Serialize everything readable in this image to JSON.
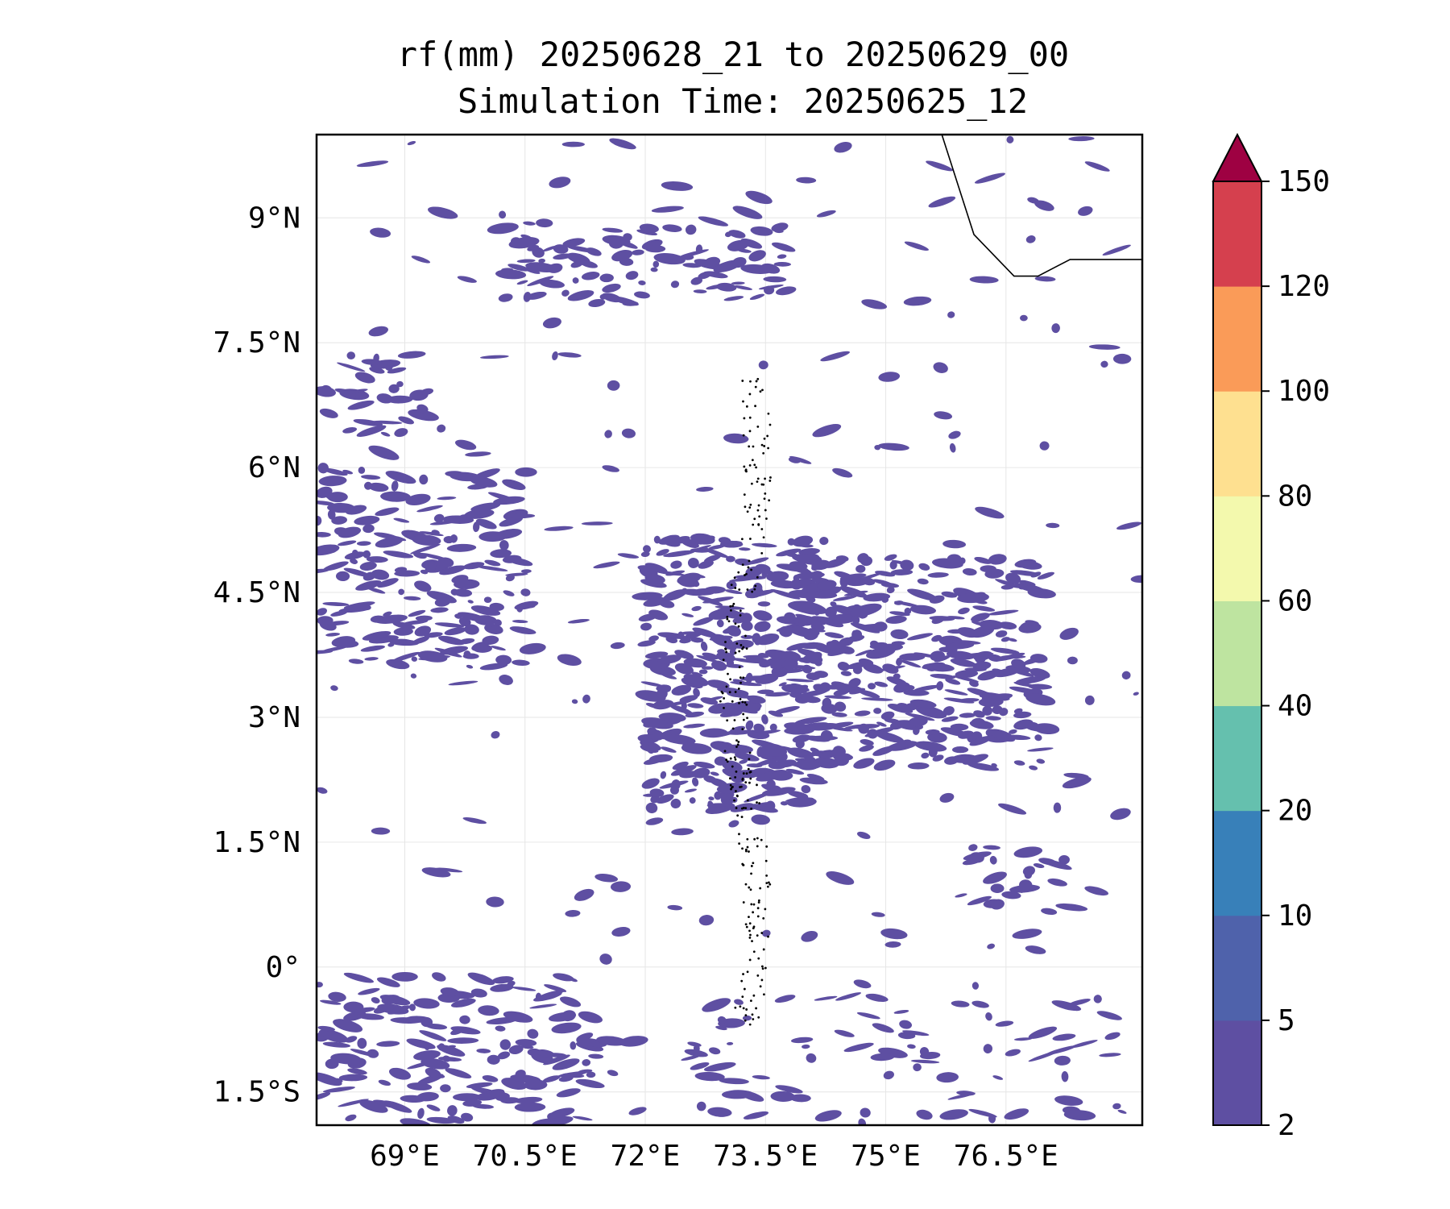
{
  "title": {
    "line1": "rf(mm) 20250628_21 to 20250629_00",
    "line2": "Simulation Time: 20250625_12"
  },
  "map": {
    "lon_range": [
      67.9,
      78.2
    ],
    "lat_range": [
      -1.9,
      10.0
    ],
    "x_ticks": [
      {
        "value": 69.0,
        "label": "69°E"
      },
      {
        "value": 70.5,
        "label": "70.5°E"
      },
      {
        "value": 72.0,
        "label": "72°E"
      },
      {
        "value": 73.5,
        "label": "73.5°E"
      },
      {
        "value": 75.0,
        "label": "75°E"
      },
      {
        "value": 76.5,
        "label": "76.5°E"
      }
    ],
    "y_ticks": [
      {
        "value": 9.0,
        "label": "9°N"
      },
      {
        "value": 7.5,
        "label": "7.5°N"
      },
      {
        "value": 6.0,
        "label": "6°N"
      },
      {
        "value": 4.5,
        "label": "4.5°N"
      },
      {
        "value": 3.0,
        "label": "3°N"
      },
      {
        "value": 1.5,
        "label": "1.5°N"
      },
      {
        "value": 0.0,
        "label": "0°"
      },
      {
        "value": -1.5,
        "label": "1.5°S"
      }
    ],
    "grid": true,
    "rain_color": "#5e4fa2",
    "rain_regions": [
      {
        "lon": [
          70.2,
          73.8
        ],
        "lat": [
          8.0,
          8.9
        ],
        "density": 0.45
      },
      {
        "lon": [
          67.9,
          69.5
        ],
        "lat": [
          6.4,
          7.4
        ],
        "density": 0.35
      },
      {
        "lon": [
          67.9,
          70.5
        ],
        "lat": [
          3.6,
          6.0
        ],
        "density": 0.45
      },
      {
        "lon": [
          72.0,
          74.2
        ],
        "lat": [
          1.9,
          5.1
        ],
        "density": 0.65
      },
      {
        "lon": [
          73.9,
          77.0
        ],
        "lat": [
          2.4,
          4.9
        ],
        "density": 0.55
      },
      {
        "lon": [
          76.0,
          77.3
        ],
        "lat": [
          0.6,
          1.4
        ],
        "density": 0.35
      },
      {
        "lon": [
          67.9,
          71.4
        ],
        "lat": [
          -1.9,
          -0.1
        ],
        "density": 0.4
      },
      {
        "lon": [
          72.5,
          78.0
        ],
        "lat": [
          -1.9,
          -0.3
        ],
        "density": 0.12
      },
      {
        "lon": [
          67.9,
          78.2
        ],
        "lat": [
          -1.9,
          10.0
        ],
        "density": 0.025
      }
    ],
    "coastline": [
      [
        75.7,
        10.0
      ],
      [
        75.9,
        9.4
      ],
      [
        76.1,
        8.8
      ],
      [
        76.4,
        8.5
      ],
      [
        76.6,
        8.3
      ],
      [
        76.9,
        8.3
      ],
      [
        77.1,
        8.4
      ],
      [
        77.3,
        8.5
      ],
      [
        78.2,
        8.5
      ]
    ],
    "maldives_lon": [
      72.9,
      73.5
    ],
    "maldives_lat": [
      -0.7,
      7.1
    ]
  },
  "colorbar": {
    "levels": [
      "2",
      "5",
      "10",
      "20",
      "40",
      "60",
      "80",
      "100",
      "120",
      "150"
    ],
    "colors": [
      "#5e4fa2",
      "#4f62ab",
      "#3880b9",
      "#65c0ae",
      "#bee4a0",
      "#f3f9ad",
      "#fee090",
      "#fa9b58",
      "#d5404e"
    ],
    "extend_color": "#9e0142"
  }
}
